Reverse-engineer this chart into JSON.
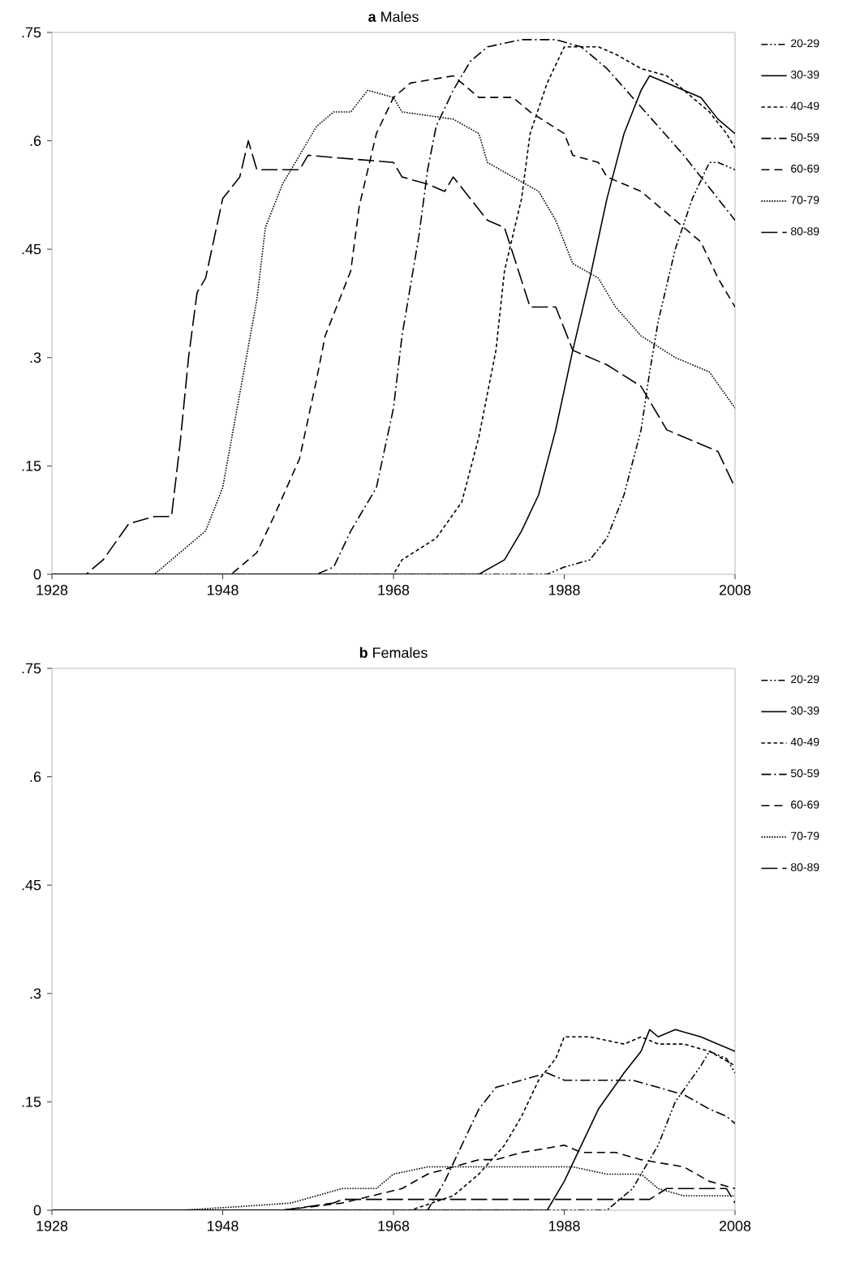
{
  "chart_data": [
    {
      "type": "line",
      "title": "**a** Males",
      "xlim": [
        1928,
        2008
      ],
      "xticks": [
        1928,
        1948,
        1968,
        1988,
        2008
      ],
      "ylim": [
        0,
        0.75
      ],
      "yticks": [
        {
          "value": 0,
          "label": "0"
        },
        {
          "value": 0.15,
          "label": ".15"
        },
        {
          "value": 0.3,
          "label": ".3"
        },
        {
          "value": 0.45,
          "label": ".45"
        },
        {
          "value": 0.6,
          "label": ".6"
        },
        {
          "value": 0.75,
          "label": ".75"
        }
      ],
      "legend": "right",
      "series": [
        {
          "name": "20-29",
          "color": "#000000",
          "line_style": "dashdotdot",
          "x": [
            1928,
            1986,
            1988,
            1991,
            1993,
            1995,
            1997,
            1998,
            1999,
            2001,
            2003,
            2005,
            2006,
            2008
          ],
          "values": [
            0,
            0,
            0.01,
            0.02,
            0.05,
            0.11,
            0.2,
            0.28,
            0.35,
            0.45,
            0.52,
            0.57,
            0.57,
            0.56
          ]
        },
        {
          "name": "30-39",
          "color": "#000000",
          "line_style": "solid",
          "x": [
            1928,
            1976,
            1978,
            1981,
            1983,
            1985,
            1987,
            1989,
            1991,
            1993,
            1995,
            1997,
            1998,
            2000,
            2002,
            2004,
            2006,
            2008
          ],
          "values": [
            0,
            0,
            0,
            0.02,
            0.06,
            0.11,
            0.2,
            0.31,
            0.41,
            0.52,
            0.61,
            0.67,
            0.69,
            0.68,
            0.67,
            0.66,
            0.63,
            0.61
          ]
        },
        {
          "name": "40-49",
          "color": "#000000",
          "line_style": "shortdash",
          "x": [
            1928,
            1968,
            1969,
            1973,
            1976,
            1978,
            1980,
            1981,
            1983,
            1984,
            1986,
            1988,
            1990,
            1992,
            1994,
            1997,
            2000,
            2002,
            2005,
            2007,
            2008
          ],
          "values": [
            0,
            0,
            0.02,
            0.05,
            0.1,
            0.19,
            0.31,
            0.42,
            0.52,
            0.61,
            0.68,
            0.73,
            0.73,
            0.73,
            0.72,
            0.7,
            0.69,
            0.67,
            0.64,
            0.61,
            0.59
          ]
        },
        {
          "name": "50-59",
          "color": "#000000",
          "line_style": "dashdot",
          "x": [
            1928,
            1959,
            1961,
            1963,
            1966,
            1968,
            1969,
            1971,
            1972,
            1973,
            1975,
            1977,
            1979,
            1983,
            1987,
            1990,
            1993,
            1996,
            1999,
            2002,
            2004,
            2006,
            2008
          ],
          "values": [
            0,
            0,
            0.01,
            0.06,
            0.12,
            0.23,
            0.33,
            0.47,
            0.56,
            0.62,
            0.67,
            0.71,
            0.73,
            0.74,
            0.74,
            0.73,
            0.7,
            0.66,
            0.62,
            0.58,
            0.55,
            0.52,
            0.49
          ]
        },
        {
          "name": "60-69",
          "color": "#000000",
          "line_style": "dashed",
          "x": [
            1928,
            1949,
            1952,
            1954,
            1957,
            1959,
            1960,
            1963,
            1964,
            1966,
            1968,
            1970,
            1975,
            1977,
            1978,
            1982,
            1984,
            1988,
            1989,
            1992,
            1993,
            1997,
            2000,
            2004,
            2006,
            2008
          ],
          "values": [
            0,
            0,
            0.03,
            0.08,
            0.16,
            0.27,
            0.33,
            0.42,
            0.51,
            0.61,
            0.66,
            0.68,
            0.69,
            0.67,
            0.66,
            0.66,
            0.64,
            0.61,
            0.58,
            0.57,
            0.55,
            0.53,
            0.5,
            0.46,
            0.41,
            0.37
          ]
        },
        {
          "name": "70-79",
          "color": "#000000",
          "line_style": "dotted",
          "x": [
            1928,
            1940,
            1942,
            1946,
            1948,
            1950,
            1952,
            1953,
            1955,
            1957,
            1959,
            1961,
            1963,
            1965,
            1968,
            1969,
            1975,
            1978,
            1979,
            1985,
            1987,
            1989,
            1992,
            1994,
            1997,
            2001,
            2005,
            2008
          ],
          "values": [
            0,
            0,
            0.02,
            0.06,
            0.12,
            0.25,
            0.38,
            0.48,
            0.54,
            0.58,
            0.62,
            0.64,
            0.64,
            0.67,
            0.66,
            0.64,
            0.63,
            0.61,
            0.57,
            0.53,
            0.49,
            0.43,
            0.41,
            0.37,
            0.33,
            0.3,
            0.28,
            0.23
          ]
        },
        {
          "name": "80-89",
          "color": "#000000",
          "line_style": "longdash",
          "x": [
            1928,
            1932,
            1934,
            1937,
            1940,
            1942,
            1943,
            1944,
            1945,
            1946,
            1948,
            1950,
            1951,
            1952,
            1957,
            1958,
            1968,
            1969,
            1972,
            1974,
            1975,
            1979,
            1981,
            1984,
            1987,
            1989,
            1993,
            1997,
            2000,
            2004,
            2006,
            2008
          ],
          "values": [
            0,
            0,
            0.02,
            0.07,
            0.08,
            0.08,
            0.18,
            0.3,
            0.39,
            0.41,
            0.52,
            0.55,
            0.6,
            0.56,
            0.56,
            0.58,
            0.57,
            0.55,
            0.54,
            0.53,
            0.55,
            0.49,
            0.48,
            0.37,
            0.37,
            0.31,
            0.29,
            0.26,
            0.2,
            0.18,
            0.17,
            0.12
          ]
        }
      ]
    },
    {
      "type": "line",
      "title": "**b** Females",
      "xlim": [
        1928,
        2008
      ],
      "xticks": [
        1928,
        1948,
        1968,
        1988,
        2008
      ],
      "ylim": [
        0,
        0.75
      ],
      "yticks": [
        {
          "value": 0,
          "label": "0"
        },
        {
          "value": 0.15,
          "label": ".15"
        },
        {
          "value": 0.3,
          "label": ".3"
        },
        {
          "value": 0.45,
          "label": ".45"
        },
        {
          "value": 0.6,
          "label": ".6"
        },
        {
          "value": 0.75,
          "label": ".75"
        }
      ],
      "legend": "right",
      "series": [
        {
          "name": "20-29",
          "color": "#000000",
          "line_style": "dashdotdot",
          "x": [
            1928,
            1993,
            1996,
            1999,
            2001,
            2004,
            2005,
            2007,
            2008
          ],
          "values": [
            0,
            0,
            0.03,
            0.09,
            0.15,
            0.2,
            0.22,
            0.21,
            0.19
          ]
        },
        {
          "name": "30-39",
          "color": "#000000",
          "line_style": "solid",
          "x": [
            1928,
            1986,
            1988,
            1990,
            1992,
            1995,
            1997,
            1998,
            1999,
            2001,
            2004,
            2006,
            2008
          ],
          "values": [
            0,
            0,
            0.04,
            0.09,
            0.14,
            0.19,
            0.22,
            0.25,
            0.24,
            0.25,
            0.24,
            0.23,
            0.22
          ]
        },
        {
          "name": "40-49",
          "color": "#000000",
          "line_style": "shortdash",
          "x": [
            1928,
            1970,
            1975,
            1978,
            1981,
            1983,
            1985,
            1987,
            1988,
            1991,
            1995,
            1997,
            1999,
            2002,
            2005,
            2008
          ],
          "values": [
            0,
            0,
            0.02,
            0.05,
            0.09,
            0.13,
            0.18,
            0.21,
            0.24,
            0.24,
            0.23,
            0.24,
            0.23,
            0.23,
            0.22,
            0.2
          ]
        },
        {
          "name": "50-59",
          "color": "#000000",
          "line_style": "dashdot",
          "x": [
            1928,
            1972,
            1974,
            1976,
            1978,
            1980,
            1983,
            1986,
            1988,
            1992,
            1996,
            1999,
            2002,
            2005,
            2007,
            2008
          ],
          "values": [
            0,
            0,
            0.04,
            0.09,
            0.14,
            0.17,
            0.18,
            0.19,
            0.18,
            0.18,
            0.18,
            0.17,
            0.16,
            0.14,
            0.13,
            0.12
          ]
        },
        {
          "name": "60-69",
          "color": "#000000",
          "line_style": "dashed",
          "x": [
            1928,
            1955,
            1962,
            1969,
            1972,
            1975,
            1978,
            1980,
            1983,
            1988,
            1990,
            1994,
            1997,
            2002,
            2005,
            2008
          ],
          "values": [
            0,
            0,
            0.01,
            0.03,
            0.05,
            0.06,
            0.07,
            0.07,
            0.08,
            0.09,
            0.08,
            0.08,
            0.07,
            0.06,
            0.04,
            0.03
          ]
        },
        {
          "name": "70-79",
          "color": "#000000",
          "line_style": "dotted",
          "x": [
            1928,
            1943,
            1950,
            1956,
            1962,
            1966,
            1968,
            1972,
            1975,
            1979,
            1983,
            1989,
            1993,
            1997,
            1999,
            2002,
            2006,
            2008
          ],
          "values": [
            0,
            0,
            0.005,
            0.01,
            0.03,
            0.03,
            0.05,
            0.06,
            0.06,
            0.06,
            0.06,
            0.06,
            0.05,
            0.05,
            0.03,
            0.02,
            0.02,
            0.02
          ]
        },
        {
          "name": "80-89",
          "color": "#000000",
          "line_style": "longdash",
          "x": [
            1928,
            1955,
            1961,
            1962,
            1998,
            2000,
            2002,
            2007,
            2008
          ],
          "values": [
            0,
            0,
            0.01,
            0.015,
            0.015,
            0.03,
            0.03,
            0.03,
            0.01
          ]
        }
      ]
    }
  ]
}
